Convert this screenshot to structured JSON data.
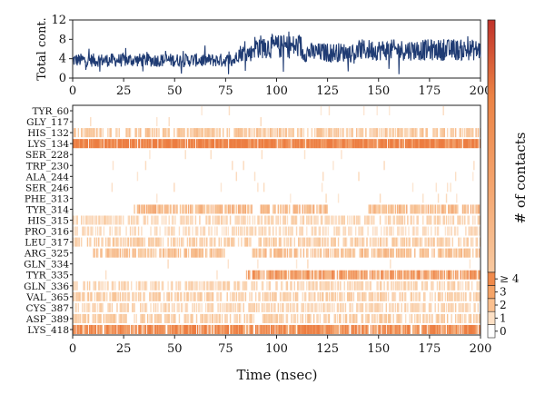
{
  "chart_data": [
    {
      "type": "line",
      "name": "total-contacts",
      "ylabel": "Total cont.",
      "xlim": [
        0,
        200
      ],
      "ylim": [
        0,
        12
      ],
      "x_ticks": [
        0,
        25,
        50,
        75,
        100,
        125,
        150,
        175,
        200
      ],
      "y_ticks": [
        0,
        4,
        8,
        12
      ],
      "line_color": "#1f3b73",
      "segments": [
        {
          "x": [
            0,
            80
          ],
          "mean": 3.7,
          "amp": 1.4
        },
        {
          "x": [
            80,
            88
          ],
          "mean": 5.2,
          "amp": 1.8
        },
        {
          "x": [
            88,
            112
          ],
          "mean": 6.5,
          "amp": 2.5
        },
        {
          "x": [
            112,
            140
          ],
          "mean": 5.3,
          "amp": 2.0
        },
        {
          "x": [
            140,
            200
          ],
          "mean": 5.8,
          "amp": 2.2
        }
      ]
    },
    {
      "type": "heatmap",
      "name": "residue-contacts",
      "xlabel": "Time (nsec)",
      "xlim": [
        0,
        200
      ],
      "x_ticks": [
        0,
        25,
        50,
        75,
        100,
        125,
        150,
        175,
        200
      ],
      "rows": [
        {
          "label": "TYR_60",
          "level": 0.03,
          "ranges": []
        },
        {
          "label": "GLY_117",
          "level": 0.02,
          "ranges": []
        },
        {
          "label": "HIS_132",
          "level": 0.45,
          "ranges": [
            [
              0,
              200
            ]
          ]
        },
        {
          "label": "LYS_134",
          "level": 0.98,
          "ranges": [
            [
              0,
              200
            ]
          ]
        },
        {
          "label": "SER_228",
          "level": 0.04,
          "ranges": []
        },
        {
          "label": "TRP_230",
          "level": 0.02,
          "ranges": []
        },
        {
          "label": "ALA_244",
          "level": 0.05,
          "ranges": []
        },
        {
          "label": "SER_246",
          "level": 0.06,
          "ranges": []
        },
        {
          "label": "PHE_313",
          "level": 0.05,
          "ranges": []
        },
        {
          "label": "TYR_314",
          "level": 0.55,
          "ranges": [
            [
              30,
              88
            ],
            [
              92,
              125
            ],
            [
              145,
              200
            ]
          ]
        },
        {
          "label": "HIS_315",
          "level": 0.35,
          "ranges": [
            [
              0,
              200
            ]
          ]
        },
        {
          "label": "PRO_316",
          "level": 0.3,
          "ranges": [
            [
              0,
              200
            ]
          ]
        },
        {
          "label": "LEU_317",
          "level": 0.4,
          "ranges": [
            [
              0,
              200
            ]
          ]
        },
        {
          "label": "ARG_325",
          "level": 0.5,
          "ranges": [
            [
              10,
              75
            ],
            [
              88,
              200
            ]
          ]
        },
        {
          "label": "GLN_334",
          "level": 0.03,
          "ranges": []
        },
        {
          "label": "TYR_335",
          "level": 0.75,
          "ranges": [
            [
              85,
              200
            ]
          ]
        },
        {
          "label": "GLN_336",
          "level": 0.35,
          "ranges": [
            [
              0,
              200
            ]
          ]
        },
        {
          "label": "VAL_365",
          "level": 0.4,
          "ranges": [
            [
              0,
              200
            ]
          ]
        },
        {
          "label": "CYS_387",
          "level": 0.35,
          "ranges": [
            [
              0,
              200
            ]
          ]
        },
        {
          "label": "ASP_389",
          "level": 0.4,
          "ranges": [
            [
              0,
              200
            ]
          ]
        },
        {
          "label": "LYS_418",
          "level": 0.85,
          "ranges": [
            [
              0,
              200
            ]
          ]
        }
      ]
    }
  ],
  "colorbar": {
    "label": "# of contacts",
    "levels": [
      "0",
      "1",
      "2",
      "3",
      "≥ 4"
    ],
    "colors": [
      "#ffffff",
      "#fde0c5",
      "#fbc08f",
      "#f5a468",
      "#f08a4b",
      "#dc5a34",
      "#b22a22"
    ]
  }
}
